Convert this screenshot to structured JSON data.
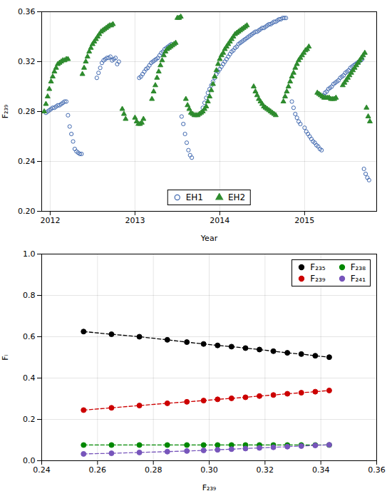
{
  "chart_data": [
    {
      "type": "scatter",
      "xlabel": "Year",
      "ylabel": "F₂₃₉",
      "xlim": [
        2011.9,
        2015.85
      ],
      "ylim": [
        0.2,
        0.36
      ],
      "xticks": [
        2012,
        2013,
        2014,
        2015
      ],
      "yticks": [
        {
          "value": 0.2,
          "label": "0.20"
        },
        0.24,
        0.28,
        0.32,
        0.36
      ],
      "grid": true,
      "legend": "lower center",
      "series": [
        {
          "name": "EH1",
          "color": "#4169b0",
          "marker": "open_circle",
          "x": [
            2011.95,
            2011.97,
            2011.99,
            2012.01,
            2012.03,
            2012.05,
            2012.07,
            2012.09,
            2012.11,
            2012.13,
            2012.15,
            2012.17,
            2012.19,
            2012.21,
            2012.23,
            2012.25,
            2012.27,
            2012.29,
            2012.31,
            2012.33,
            2012.35,
            2012.37,
            2012.55,
            2012.57,
            2012.59,
            2012.61,
            2012.63,
            2012.65,
            2012.67,
            2012.69,
            2012.71,
            2012.73,
            2012.75,
            2012.77,
            2012.79,
            2012.81,
            2013.05,
            2013.07,
            2013.09,
            2013.11,
            2013.13,
            2013.15,
            2013.17,
            2013.19,
            2013.21,
            2013.23,
            2013.25,
            2013.27,
            2013.29,
            2013.31,
            2013.33,
            2013.35,
            2013.37,
            2013.39,
            2013.41,
            2013.43,
            2013.55,
            2013.57,
            2013.59,
            2013.61,
            2013.63,
            2013.65,
            2013.67,
            2013.8,
            2013.82,
            2013.84,
            2013.86,
            2013.88,
            2013.9,
            2013.92,
            2013.94,
            2013.96,
            2013.98,
            2014.0,
            2014.02,
            2014.04,
            2014.06,
            2014.08,
            2014.1,
            2014.12,
            2014.14,
            2014.16,
            2014.18,
            2014.2,
            2014.22,
            2014.24,
            2014.26,
            2014.28,
            2014.3,
            2014.32,
            2014.34,
            2014.36,
            2014.38,
            2014.4,
            2014.42,
            2014.44,
            2014.46,
            2014.48,
            2014.5,
            2014.52,
            2014.54,
            2014.56,
            2014.58,
            2014.6,
            2014.62,
            2014.64,
            2014.66,
            2014.68,
            2014.7,
            2014.72,
            2014.74,
            2014.76,
            2014.78,
            2014.85,
            2014.87,
            2014.89,
            2014.91,
            2014.93,
            2014.95,
            2015.0,
            2015.02,
            2015.04,
            2015.06,
            2015.08,
            2015.1,
            2015.12,
            2015.14,
            2015.16,
            2015.18,
            2015.2,
            2015.22,
            2015.24,
            2015.26,
            2015.28,
            2015.3,
            2015.32,
            2015.34,
            2015.36,
            2015.38,
            2015.4,
            2015.42,
            2015.44,
            2015.46,
            2015.48,
            2015.5,
            2015.52,
            2015.54,
            2015.56,
            2015.58,
            2015.6,
            2015.62,
            2015.64,
            2015.66,
            2015.68,
            2015.7,
            2015.72,
            2015.74,
            2015.76
          ],
          "values": [
            0.279,
            0.28,
            0.281,
            0.282,
            0.283,
            0.283,
            0.284,
            0.285,
            0.285,
            0.286,
            0.287,
            0.288,
            0.288,
            0.277,
            0.268,
            0.262,
            0.256,
            0.25,
            0.248,
            0.247,
            0.246,
            0.246,
            0.307,
            0.311,
            0.315,
            0.319,
            0.321,
            0.322,
            0.323,
            0.323,
            0.324,
            0.321,
            0.322,
            0.323,
            0.318,
            0.32,
            0.307,
            0.308,
            0.31,
            0.312,
            0.314,
            0.315,
            0.317,
            0.319,
            0.32,
            0.321,
            0.322,
            0.323,
            0.325,
            0.327,
            0.328,
            0.33,
            0.331,
            0.332,
            0.333,
            0.334,
            0.276,
            0.27,
            0.262,
            0.255,
            0.249,
            0.245,
            0.243,
            0.283,
            0.287,
            0.291,
            0.295,
            0.298,
            0.301,
            0.304,
            0.307,
            0.31,
            0.312,
            0.314,
            0.316,
            0.318,
            0.32,
            0.322,
            0.324,
            0.326,
            0.328,
            0.329,
            0.331,
            0.332,
            0.334,
            0.335,
            0.336,
            0.337,
            0.338,
            0.339,
            0.34,
            0.341,
            0.342,
            0.343,
            0.344,
            0.344,
            0.345,
            0.346,
            0.347,
            0.347,
            0.348,
            0.349,
            0.35,
            0.35,
            0.351,
            0.352,
            0.352,
            0.353,
            0.354,
            0.354,
            0.355,
            0.355,
            0.355,
            0.288,
            0.283,
            0.278,
            0.275,
            0.272,
            0.27,
            0.267,
            0.264,
            0.262,
            0.26,
            0.258,
            0.256,
            0.255,
            0.253,
            0.252,
            0.25,
            0.249,
            0.293,
            0.295,
            0.296,
            0.298,
            0.299,
            0.3,
            0.302,
            0.303,
            0.304,
            0.305,
            0.307,
            0.308,
            0.309,
            0.311,
            0.312,
            0.313,
            0.315,
            0.316,
            0.317,
            0.318,
            0.319,
            0.32,
            0.321,
            0.322,
            0.234,
            0.23,
            0.227,
            0.225
          ]
        },
        {
          "name": "EH2",
          "color": "#2e8b2e",
          "marker": "triangle",
          "x": [
            2011.93,
            2011.95,
            2011.97,
            2011.99,
            2012.01,
            2012.03,
            2012.05,
            2012.07,
            2012.09,
            2012.11,
            2012.13,
            2012.15,
            2012.17,
            2012.19,
            2012.21,
            2012.38,
            2012.4,
            2012.42,
            2012.44,
            2012.46,
            2012.48,
            2012.5,
            2012.52,
            2012.54,
            2012.56,
            2012.58,
            2012.6,
            2012.62,
            2012.64,
            2012.66,
            2012.68,
            2012.7,
            2012.72,
            2012.74,
            2012.85,
            2012.87,
            2012.89,
            2013.0,
            2013.02,
            2013.04,
            2013.06,
            2013.08,
            2013.1,
            2013.2,
            2013.22,
            2013.24,
            2013.26,
            2013.28,
            2013.3,
            2013.32,
            2013.34,
            2013.36,
            2013.38,
            2013.4,
            2013.42,
            2013.44,
            2013.46,
            2013.48,
            2013.5,
            2013.52,
            2013.54,
            2013.6,
            2013.62,
            2013.64,
            2013.66,
            2013.68,
            2013.7,
            2013.72,
            2013.74,
            2013.76,
            2013.78,
            2013.8,
            2013.82,
            2013.84,
            2013.86,
            2013.88,
            2013.9,
            2013.92,
            2013.94,
            2013.96,
            2013.98,
            2014.0,
            2014.02,
            2014.04,
            2014.06,
            2014.08,
            2014.1,
            2014.12,
            2014.14,
            2014.16,
            2014.18,
            2014.2,
            2014.22,
            2014.24,
            2014.26,
            2014.28,
            2014.3,
            2014.32,
            2014.4,
            2014.42,
            2014.44,
            2014.46,
            2014.48,
            2014.5,
            2014.52,
            2014.54,
            2014.56,
            2014.58,
            2014.6,
            2014.62,
            2014.64,
            2014.66,
            2014.75,
            2014.77,
            2014.79,
            2014.81,
            2014.83,
            2014.85,
            2014.87,
            2014.89,
            2014.91,
            2014.93,
            2014.95,
            2014.97,
            2014.99,
            2015.01,
            2015.03,
            2015.05,
            2015.15,
            2015.17,
            2015.19,
            2015.21,
            2015.23,
            2015.25,
            2015.27,
            2015.29,
            2015.31,
            2015.33,
            2015.35,
            2015.37,
            2015.45,
            2015.47,
            2015.49,
            2015.51,
            2015.53,
            2015.55,
            2015.57,
            2015.59,
            2015.61,
            2015.63,
            2015.65,
            2015.67,
            2015.69,
            2015.71,
            2015.73,
            2015.75,
            2015.77
          ],
          "values": [
            0.28,
            0.286,
            0.292,
            0.298,
            0.304,
            0.308,
            0.312,
            0.315,
            0.318,
            0.319,
            0.32,
            0.321,
            0.321,
            0.322,
            0.322,
            0.31,
            0.315,
            0.32,
            0.324,
            0.328,
            0.331,
            0.334,
            0.336,
            0.338,
            0.34,
            0.342,
            0.344,
            0.345,
            0.346,
            0.347,
            0.348,
            0.349,
            0.349,
            0.35,
            0.282,
            0.278,
            0.274,
            0.275,
            0.272,
            0.27,
            0.27,
            0.271,
            0.274,
            0.29,
            0.296,
            0.301,
            0.307,
            0.312,
            0.317,
            0.321,
            0.325,
            0.328,
            0.33,
            0.331,
            0.332,
            0.333,
            0.334,
            0.335,
            0.355,
            0.355,
            0.356,
            0.29,
            0.285,
            0.282,
            0.279,
            0.278,
            0.277,
            0.277,
            0.277,
            0.278,
            0.279,
            0.28,
            0.282,
            0.284,
            0.288,
            0.292,
            0.297,
            0.302,
            0.308,
            0.313,
            0.318,
            0.322,
            0.325,
            0.327,
            0.33,
            0.332,
            0.334,
            0.336,
            0.338,
            0.34,
            0.342,
            0.343,
            0.344,
            0.345,
            0.346,
            0.347,
            0.348,
            0.349,
            0.3,
            0.296,
            0.293,
            0.29,
            0.288,
            0.286,
            0.284,
            0.283,
            0.282,
            0.281,
            0.28,
            0.279,
            0.278,
            0.277,
            0.288,
            0.292,
            0.296,
            0.3,
            0.304,
            0.308,
            0.311,
            0.315,
            0.318,
            0.321,
            0.323,
            0.325,
            0.327,
            0.329,
            0.33,
            0.332,
            0.295,
            0.294,
            0.293,
            0.292,
            0.291,
            0.291,
            0.291,
            0.291,
            0.29,
            0.29,
            0.29,
            0.291,
            0.301,
            0.303,
            0.305,
            0.307,
            0.309,
            0.311,
            0.313,
            0.315,
            0.317,
            0.319,
            0.321,
            0.323,
            0.325,
            0.327,
            0.283,
            0.276,
            0.272
          ]
        }
      ]
    },
    {
      "type": "line",
      "xlabel": "F₂₃₉",
      "ylabel": "Fᵢ",
      "xlim": [
        0.24,
        0.36
      ],
      "ylim": [
        0.0,
        1.0
      ],
      "xticks": [
        0.24,
        0.26,
        0.28,
        {
          "value": 0.3,
          "label": "0.30"
        },
        0.32,
        0.34,
        0.36
      ],
      "yticks": [
        {
          "value": 0.0,
          "label": "0.0"
        },
        0.2,
        0.4,
        0.6,
        0.8,
        {
          "value": 1.0,
          "label": "1.0"
        }
      ],
      "grid": true,
      "legend": "upper right",
      "x": [
        0.255,
        0.265,
        0.275,
        0.285,
        0.292,
        0.298,
        0.303,
        0.308,
        0.313,
        0.318,
        0.323,
        0.328,
        0.333,
        0.338,
        0.343
      ],
      "series": [
        {
          "name": "F₂₃₅",
          "color": "#000000",
          "marker": "circle",
          "line_style": "dashed",
          "values": [
            0.625,
            0.612,
            0.6,
            0.585,
            0.574,
            0.565,
            0.558,
            0.552,
            0.545,
            0.538,
            0.53,
            0.522,
            0.516,
            0.508,
            0.501
          ]
        },
        {
          "name": "F₂₃₉",
          "color": "#cc0000",
          "marker": "circle",
          "line_style": "dashed",
          "values": [
            0.245,
            0.256,
            0.267,
            0.278,
            0.285,
            0.291,
            0.297,
            0.302,
            0.307,
            0.313,
            0.318,
            0.324,
            0.329,
            0.334,
            0.34
          ]
        },
        {
          "name": "F₂₃₈",
          "color": "#008800",
          "marker": "circle",
          "line_style": "dashed",
          "values": [
            0.076,
            0.076,
            0.076,
            0.076,
            0.076,
            0.076,
            0.076,
            0.076,
            0.076,
            0.076,
            0.076,
            0.076,
            0.076,
            0.076,
            0.076
          ]
        },
        {
          "name": "F₂₄₁",
          "color": "#7755bb",
          "marker": "circle",
          "line_style": "dashed",
          "values": [
            0.033,
            0.036,
            0.04,
            0.044,
            0.047,
            0.05,
            0.053,
            0.056,
            0.059,
            0.062,
            0.065,
            0.068,
            0.071,
            0.074,
            0.077
          ]
        }
      ]
    }
  ]
}
